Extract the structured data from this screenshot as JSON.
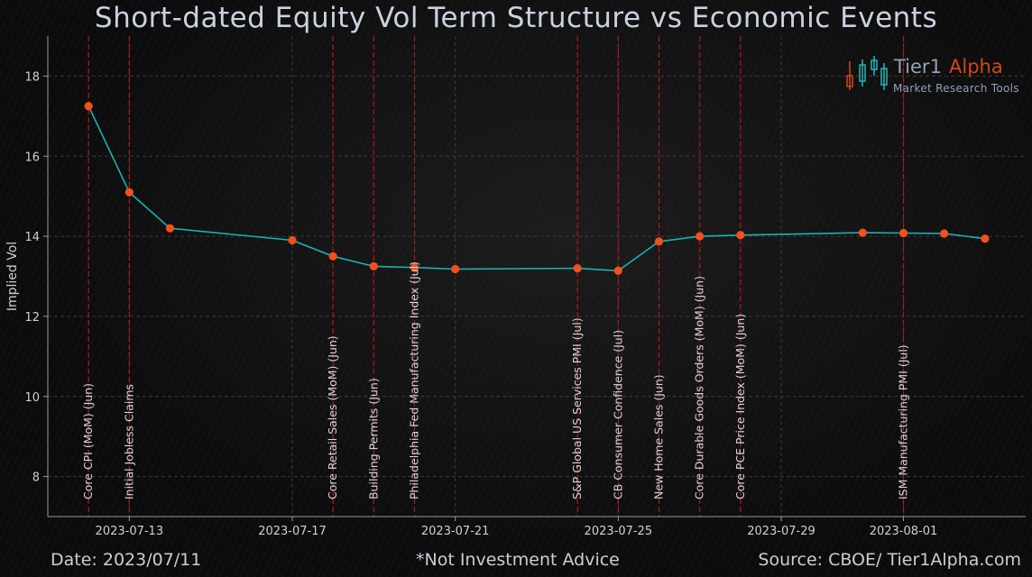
{
  "header": {
    "title": "Short-dated Equity Vol Term Structure vs Economic Events"
  },
  "footer": {
    "date": "Date: 2023/07/11",
    "disclaimer": "*Not Investment Advice",
    "source": "Source: CBOE/ Tier1Alpha.com"
  },
  "logo": {
    "word1": "Tier1",
    "word2": "Alpha",
    "subtitle": "Market  Research Tools"
  },
  "chart_data": {
    "type": "line",
    "title": "Short-dated Equity Vol Term Structure vs Economic Events",
    "xlabel": "",
    "ylabel": "Implied Vol",
    "xlim": [
      "2023-07-11",
      "2023-08-04"
    ],
    "ylim": [
      7,
      19
    ],
    "yticks": [
      8,
      10,
      12,
      14,
      16,
      18
    ],
    "xticks": [
      "2023-07-13",
      "2023-07-17",
      "2023-07-21",
      "2023-07-25",
      "2023-07-29",
      "2023-08-01"
    ],
    "grid": true,
    "line_color": "#17b3b7",
    "marker_color": "#f2501c",
    "event_line_color": "#b01818",
    "series": [
      {
        "x": [
          "2023-07-12",
          "2023-07-13",
          "2023-07-14",
          "2023-07-17",
          "2023-07-18",
          "2023-07-19",
          "2023-07-20",
          "2023-07-21",
          "2023-07-24",
          "2023-07-25",
          "2023-07-26",
          "2023-07-27",
          "2023-07-28",
          "2023-07-31",
          "2023-08-01",
          "2023-08-02",
          "2023-08-03"
        ],
        "y": [
          17.25,
          15.1,
          14.2,
          13.9,
          13.5,
          13.25,
          13.22,
          13.18,
          13.2,
          13.14,
          13.87,
          14.0,
          14.03,
          14.09,
          14.08,
          14.07,
          13.94
        ]
      }
    ],
    "events": [
      {
        "date": "2023-07-12",
        "label": "Core CPI (MoM)  (Jun)"
      },
      {
        "date": "2023-07-13",
        "label": "Initial Jobless Claims"
      },
      {
        "date": "2023-07-18",
        "label": "Core Retail Sales (MoM)  (Jun)"
      },
      {
        "date": "2023-07-19",
        "label": "Building Permits  (Jun)"
      },
      {
        "date": "2023-07-20",
        "label": "Philadelphia Fed Manufacturing Index (Jul)"
      },
      {
        "date": "2023-07-24",
        "label": "S&P Global US Services PMI  (Jul)"
      },
      {
        "date": "2023-07-25",
        "label": "CB Consumer Confidence  (Jul)"
      },
      {
        "date": "2023-07-26",
        "label": "New Home Sales  (Jun)"
      },
      {
        "date": "2023-07-27",
        "label": "Core Durable Goods Orders (MoM)  (Jun)"
      },
      {
        "date": "2023-07-28",
        "label": "Core PCE Price Index (MoM)  (Jun)"
      },
      {
        "date": "2023-08-01",
        "label": "ISM Manufacturing PMI  (Jul)"
      }
    ]
  }
}
